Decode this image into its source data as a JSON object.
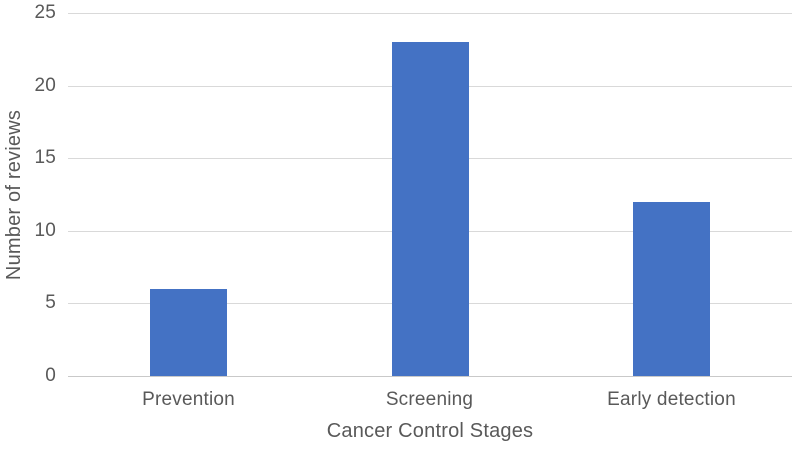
{
  "chart_data": {
    "type": "bar",
    "title": "",
    "categories": [
      "Prevention",
      "Screening",
      "Early detection"
    ],
    "values": [
      6,
      23,
      12
    ],
    "xlabel": "Cancer Control Stages",
    "ylabel": "Number of reviews",
    "ylim": [
      0,
      25
    ],
    "yticks": [
      0,
      5,
      10,
      15,
      20,
      25
    ],
    "grid": true,
    "legend": "none",
    "bar_color": "#4472c4"
  },
  "colors": {
    "bar_fill": "#4472c4",
    "axis_text": "#595959",
    "gridline": "#d9d9d9",
    "background": "#ffffff"
  }
}
